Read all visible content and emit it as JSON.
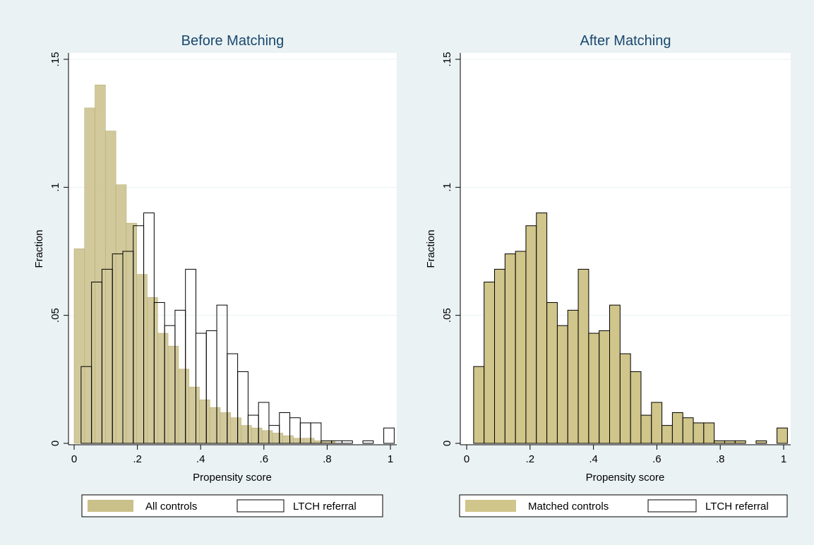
{
  "colors": {
    "background": "#eaf2f3",
    "plot_region": "#ffffff",
    "gridline": "#eaf2f3",
    "controls_fill": "#c9c08a",
    "controls_stroke": "#b8ae72",
    "referral_fill": "#ffffff",
    "referral_stroke": "#000000",
    "matched_fill": "#d0c58a",
    "matched_stroke": "#000000",
    "title": "#1a476f"
  },
  "chart_data": [
    {
      "type": "bar",
      "title": "Before Matching",
      "xlabel": "Propensity score",
      "ylabel": "Fraction",
      "xlim": [
        0,
        1
      ],
      "ylim": [
        0,
        0.15
      ],
      "xticks": [
        0,
        0.2,
        0.4,
        0.6,
        0.8,
        1
      ],
      "xtick_labels": [
        "0",
        ".2",
        ".4",
        ".6",
        ".8",
        "1"
      ],
      "yticks": [
        0,
        0.05,
        0.1,
        0.15
      ],
      "ytick_labels": [
        "0",
        ".05",
        ".1",
        ".15"
      ],
      "grid": true,
      "legend_position": "bottom",
      "series": [
        {
          "name": "All controls",
          "style": "filled",
          "bin_starts": [
            0.0,
            0.033,
            0.066,
            0.099,
            0.132,
            0.165,
            0.198,
            0.231,
            0.264,
            0.297,
            0.33,
            0.363,
            0.396,
            0.429,
            0.462,
            0.495,
            0.528,
            0.561,
            0.594,
            0.627,
            0.66,
            0.693,
            0.726,
            0.759,
            0.792
          ],
          "bin_width": 0.033,
          "values": [
            0.076,
            0.131,
            0.14,
            0.122,
            0.101,
            0.086,
            0.066,
            0.057,
            0.043,
            0.038,
            0.029,
            0.022,
            0.017,
            0.014,
            0.012,
            0.01,
            0.007,
            0.006,
            0.005,
            0.004,
            0.003,
            0.002,
            0.002,
            0.001,
            0.001
          ]
        },
        {
          "name": "LTCH referral",
          "style": "outline",
          "bin_starts": [
            0.022,
            0.055,
            0.088,
            0.121,
            0.154,
            0.187,
            0.22,
            0.253,
            0.286,
            0.319,
            0.352,
            0.385,
            0.418,
            0.451,
            0.484,
            0.517,
            0.55,
            0.583,
            0.616,
            0.649,
            0.682,
            0.715,
            0.748,
            0.781,
            0.814,
            0.847,
            0.913,
            0.979
          ],
          "bin_width": 0.033,
          "values": [
            0.03,
            0.063,
            0.068,
            0.074,
            0.075,
            0.085,
            0.09,
            0.055,
            0.046,
            0.052,
            0.068,
            0.043,
            0.044,
            0.054,
            0.035,
            0.028,
            0.011,
            0.016,
            0.007,
            0.012,
            0.01,
            0.008,
            0.008,
            0.001,
            0.001,
            0.001,
            0.001,
            0.006
          ]
        }
      ]
    },
    {
      "type": "bar",
      "title": "After Matching",
      "xlabel": "Propensity score",
      "ylabel": "Fraction",
      "xlim": [
        0,
        1
      ],
      "ylim": [
        0,
        0.15
      ],
      "xticks": [
        0,
        0.2,
        0.4,
        0.6,
        0.8,
        1
      ],
      "xtick_labels": [
        "0",
        ".2",
        ".4",
        ".6",
        ".8",
        "1"
      ],
      "yticks": [
        0,
        0.05,
        0.1,
        0.15
      ],
      "ytick_labels": [
        "0",
        ".05",
        ".1",
        ".15"
      ],
      "grid": true,
      "legend_position": "bottom",
      "series": [
        {
          "name": "Matched controls",
          "style": "filled",
          "bin_starts": [
            0.022,
            0.055,
            0.088,
            0.121,
            0.154,
            0.187,
            0.22,
            0.253,
            0.286,
            0.319,
            0.352,
            0.385,
            0.418,
            0.451,
            0.484,
            0.517,
            0.55,
            0.583,
            0.616,
            0.649,
            0.682,
            0.715,
            0.748,
            0.781,
            0.814,
            0.847,
            0.913,
            0.979
          ],
          "bin_width": 0.033,
          "values": [
            0.03,
            0.063,
            0.068,
            0.074,
            0.075,
            0.085,
            0.09,
            0.055,
            0.046,
            0.052,
            0.068,
            0.043,
            0.044,
            0.054,
            0.035,
            0.028,
            0.011,
            0.016,
            0.007,
            0.012,
            0.01,
            0.008,
            0.008,
            0.001,
            0.001,
            0.001,
            0.001,
            0.006
          ]
        },
        {
          "name": "LTCH referral",
          "style": "outline",
          "legend_only": true,
          "bin_starts": [],
          "bin_width": 0.033,
          "values": []
        }
      ]
    }
  ]
}
